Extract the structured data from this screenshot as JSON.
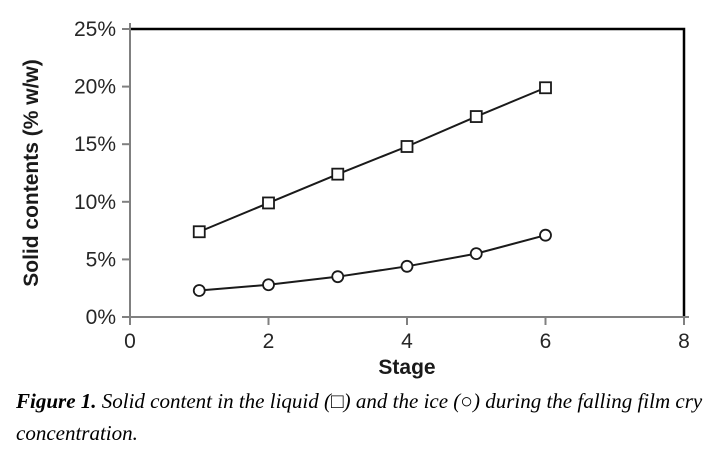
{
  "figure": {
    "caption_prefix": "Figure 1.",
    "caption_text": " Solid content in the liquid (□) and the ice (○) during the falling film cry concentration."
  },
  "chart_data": {
    "type": "line",
    "title": "",
    "xlabel": "Stage",
    "ylabel": "Solid contents (% w/w)",
    "x": [
      1,
      2,
      3,
      4,
      5,
      6
    ],
    "series": [
      {
        "name": "liquid",
        "marker": "square",
        "values": [
          7.4,
          9.9,
          12.4,
          14.8,
          17.4,
          19.9
        ]
      },
      {
        "name": "ice",
        "marker": "circle",
        "values": [
          2.3,
          2.8,
          3.5,
          4.4,
          5.5,
          7.1
        ]
      }
    ],
    "value_unit": "% w/w",
    "xlim": [
      0,
      8
    ],
    "xtick_step": 2,
    "xtick_labels": [
      "0",
      "2",
      "4",
      "6",
      "8"
    ],
    "ylim": [
      0,
      25
    ],
    "ytick_step": 5,
    "ytick_labels": [
      "0%",
      "5%",
      "10%",
      "15%",
      "20%",
      "25%"
    ],
    "grid": false,
    "legend_position": "none",
    "colors": {
      "series_line": "#1a1a1a",
      "marker_stroke": "#1a1a1a",
      "marker_fill": "#ffffff",
      "axis_line": "#808080",
      "plot_border": "#000000",
      "tick_label": "#262626",
      "background": "#ffffff"
    }
  }
}
